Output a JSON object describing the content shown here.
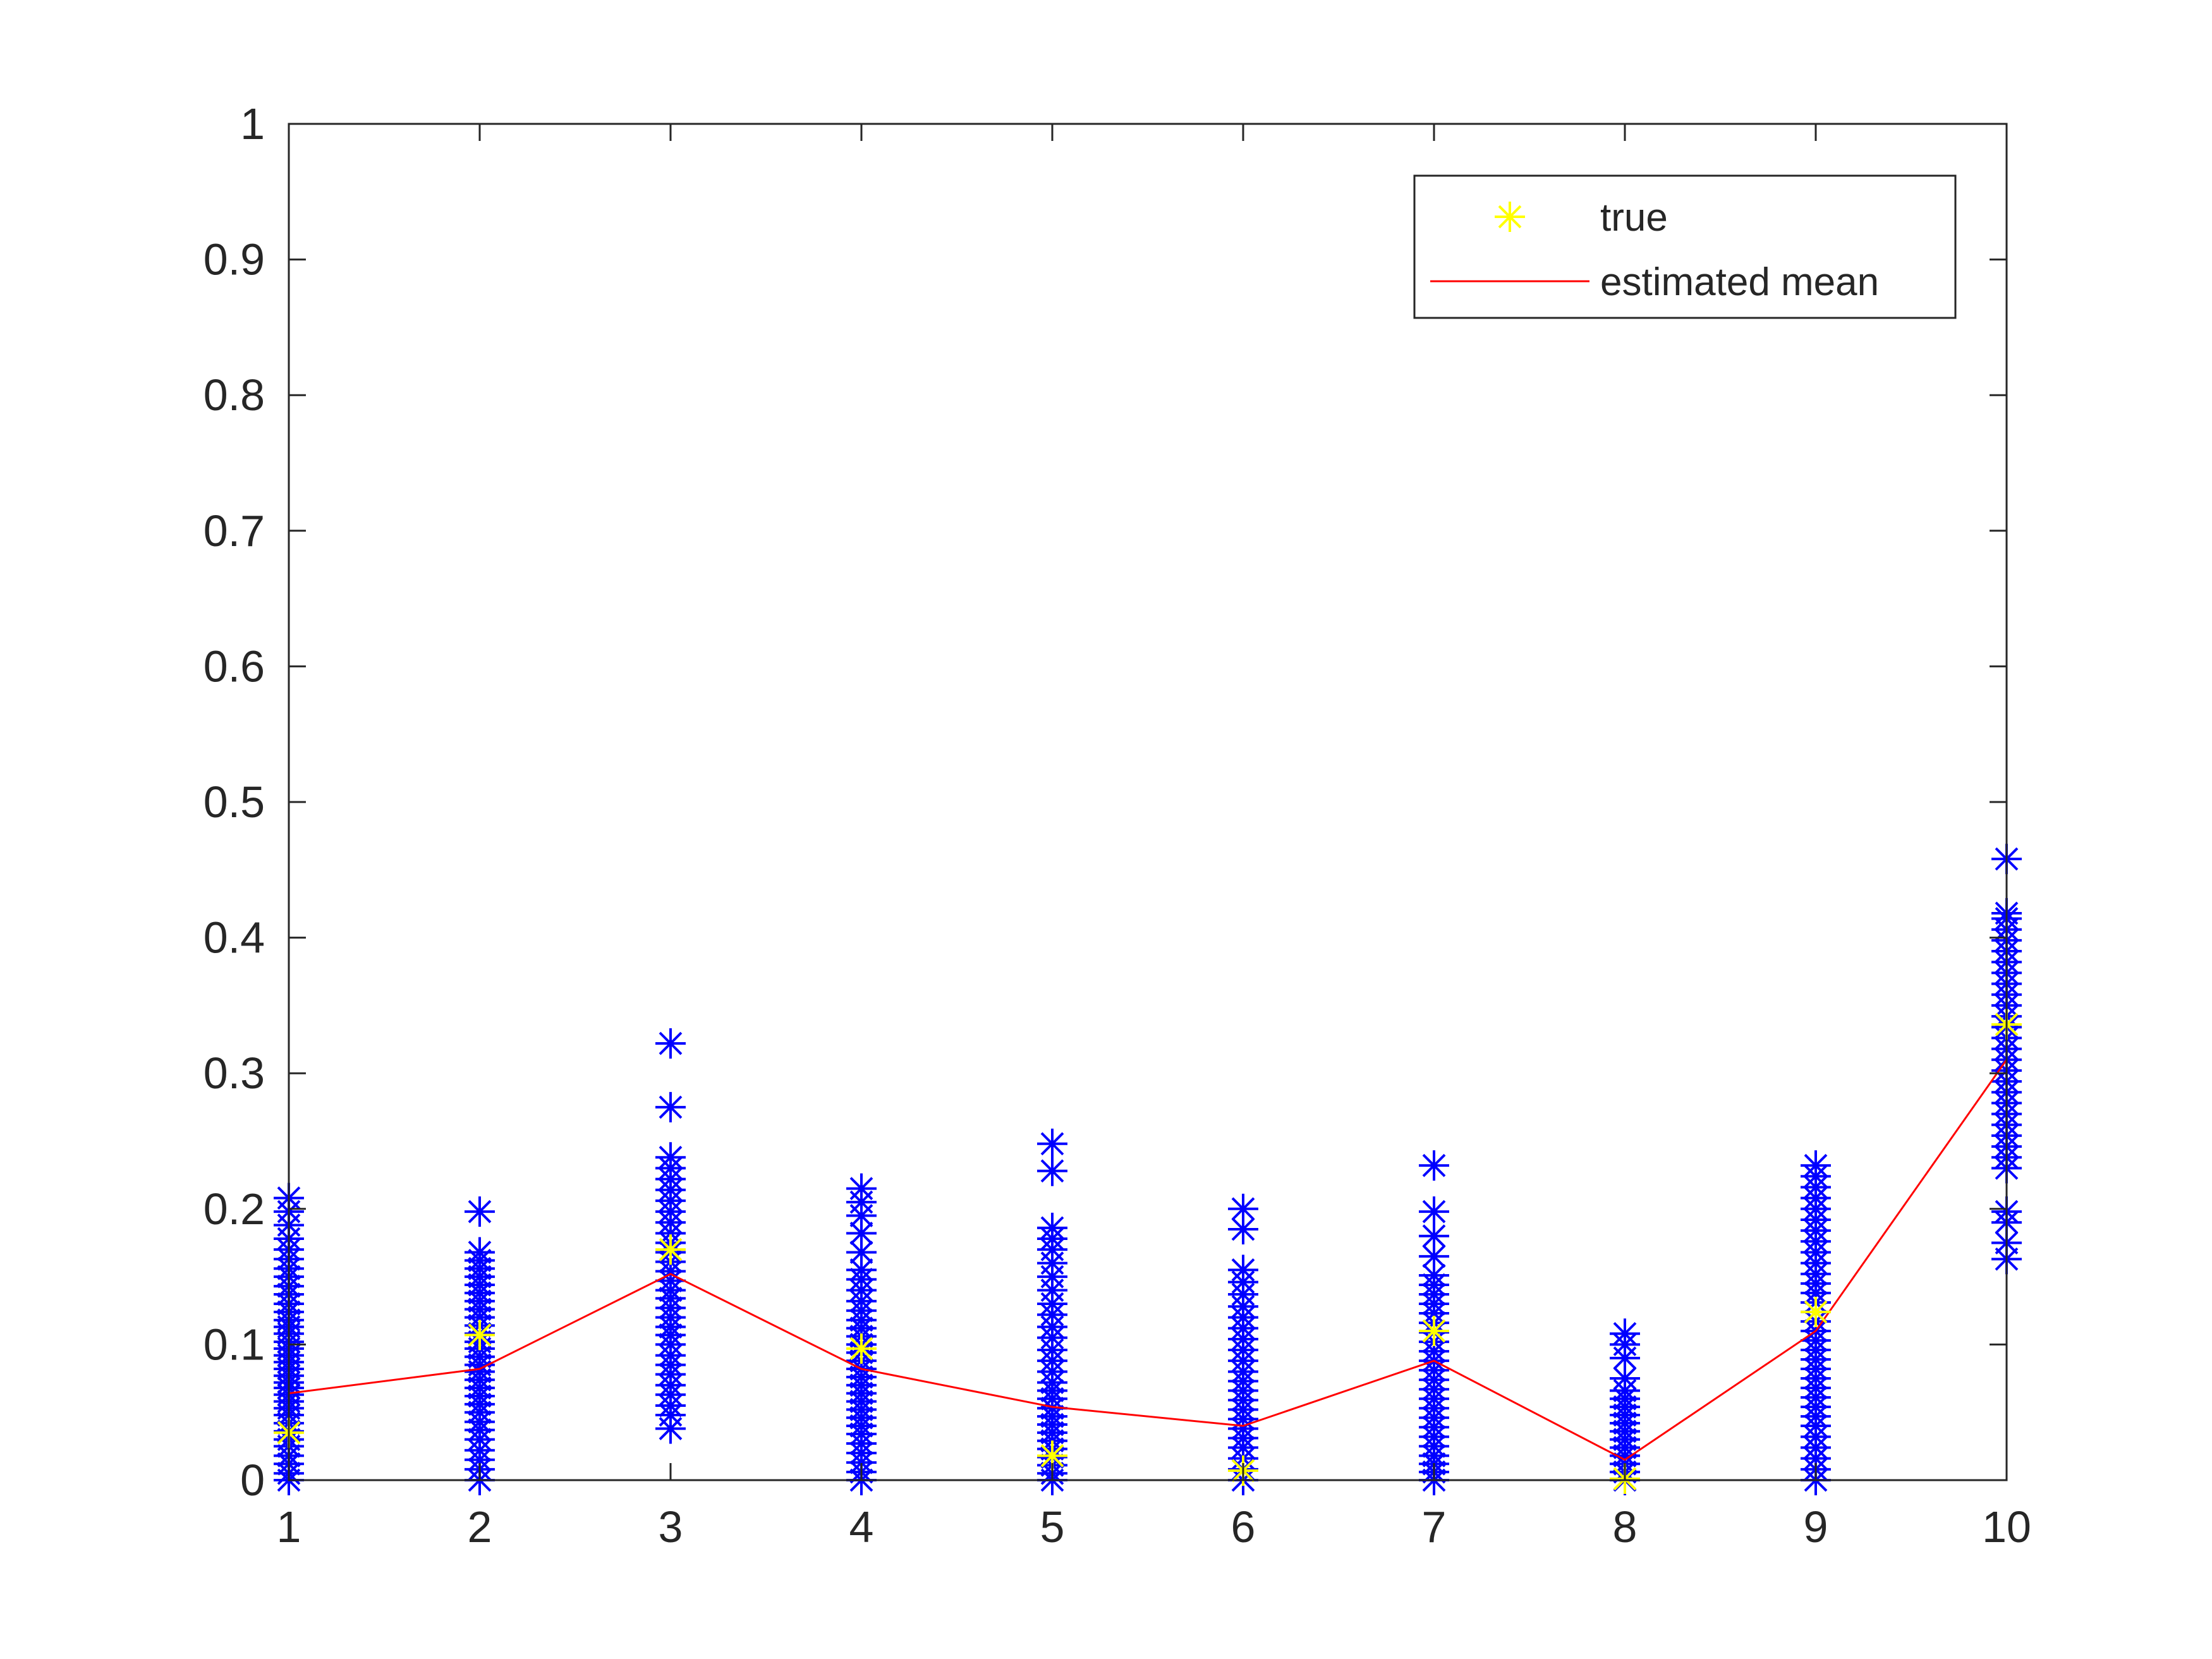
{
  "chart_data": {
    "type": "scatter",
    "title": "",
    "xlabel": "",
    "ylabel": "",
    "xlim": [
      1,
      10
    ],
    "ylim": [
      0,
      1
    ],
    "x_ticks": [
      1,
      2,
      3,
      4,
      5,
      6,
      7,
      8,
      9,
      10
    ],
    "y_ticks": [
      0,
      0.1,
      0.2,
      0.3,
      0.4,
      0.5,
      0.6,
      0.7,
      0.8,
      0.9,
      1
    ],
    "x_tick_labels": [
      "1",
      "2",
      "3",
      "4",
      "5",
      "6",
      "7",
      "8",
      "9",
      "10"
    ],
    "y_tick_labels": [
      "0",
      "0.1",
      "0.2",
      "0.3",
      "0.4",
      "0.5",
      "0.6",
      "0.7",
      "0.8",
      "0.9",
      "1"
    ],
    "grid": false,
    "legend_position": "top-right",
    "samples": [
      {
        "x": 1,
        "values": [
          0.0,
          0.005,
          0.012,
          0.018,
          0.025,
          0.03,
          0.036,
          0.042,
          0.048,
          0.053,
          0.058,
          0.063,
          0.068,
          0.072,
          0.077,
          0.082,
          0.087,
          0.092,
          0.097,
          0.102,
          0.108,
          0.113,
          0.118,
          0.124,
          0.13,
          0.137,
          0.143,
          0.15,
          0.156,
          0.163,
          0.17,
          0.178,
          0.188,
          0.198,
          0.208
        ]
      },
      {
        "x": 2,
        "values": [
          0.0,
          0.008,
          0.015,
          0.022,
          0.03,
          0.037,
          0.043,
          0.05,
          0.056,
          0.062,
          0.068,
          0.074,
          0.08,
          0.085,
          0.091,
          0.097,
          0.102,
          0.108,
          0.114,
          0.12,
          0.126,
          0.132,
          0.138,
          0.144,
          0.15,
          0.156,
          0.162,
          0.168,
          0.198
        ]
      },
      {
        "x": 3,
        "values": [
          0.038,
          0.048,
          0.055,
          0.063,
          0.07,
          0.078,
          0.085,
          0.092,
          0.1,
          0.107,
          0.113,
          0.12,
          0.127,
          0.134,
          0.14,
          0.147,
          0.154,
          0.161,
          0.168,
          0.175,
          0.182,
          0.19,
          0.198,
          0.206,
          0.214,
          0.222,
          0.23,
          0.238,
          0.275,
          0.322
        ]
      },
      {
        "x": 4,
        "values": [
          0.0,
          0.006,
          0.013,
          0.02,
          0.027,
          0.034,
          0.04,
          0.046,
          0.052,
          0.058,
          0.064,
          0.07,
          0.076,
          0.082,
          0.088,
          0.094,
          0.1,
          0.106,
          0.112,
          0.118,
          0.125,
          0.132,
          0.14,
          0.148,
          0.155,
          0.168,
          0.182,
          0.195,
          0.205,
          0.215
        ]
      },
      {
        "x": 5,
        "values": [
          0.0,
          0.005,
          0.011,
          0.017,
          0.023,
          0.029,
          0.035,
          0.041,
          0.047,
          0.053,
          0.06,
          0.066,
          0.072,
          0.08,
          0.088,
          0.096,
          0.105,
          0.113,
          0.122,
          0.13,
          0.14,
          0.15,
          0.16,
          0.17,
          0.178,
          0.186,
          0.228,
          0.248
        ]
      },
      {
        "x": 6,
        "values": [
          0.0,
          0.008,
          0.016,
          0.024,
          0.031,
          0.038,
          0.045,
          0.052,
          0.059,
          0.066,
          0.073,
          0.08,
          0.088,
          0.096,
          0.104,
          0.112,
          0.12,
          0.128,
          0.137,
          0.146,
          0.155,
          0.185,
          0.2
        ]
      },
      {
        "x": 7,
        "values": [
          0.0,
          0.006,
          0.012,
          0.018,
          0.025,
          0.032,
          0.039,
          0.046,
          0.053,
          0.06,
          0.067,
          0.074,
          0.081,
          0.088,
          0.095,
          0.102,
          0.109,
          0.116,
          0.123,
          0.13,
          0.137,
          0.144,
          0.151,
          0.165,
          0.18,
          0.198,
          0.232
        ]
      },
      {
        "x": 8,
        "values": [
          0.0,
          0.006,
          0.012,
          0.018,
          0.024,
          0.03,
          0.036,
          0.042,
          0.048,
          0.054,
          0.06,
          0.066,
          0.075,
          0.09,
          0.1,
          0.108
        ]
      },
      {
        "x": 9,
        "values": [
          0.0,
          0.008,
          0.016,
          0.024,
          0.032,
          0.04,
          0.047,
          0.054,
          0.061,
          0.068,
          0.075,
          0.082,
          0.089,
          0.096,
          0.103,
          0.11,
          0.117,
          0.124,
          0.131,
          0.138,
          0.145,
          0.152,
          0.16,
          0.168,
          0.176,
          0.184,
          0.192,
          0.2,
          0.208,
          0.216,
          0.224,
          0.232
        ]
      },
      {
        "x": 10,
        "values": [
          0.163,
          0.175,
          0.19,
          0.198,
          0.23,
          0.238,
          0.246,
          0.254,
          0.262,
          0.27,
          0.278,
          0.286,
          0.294,
          0.302,
          0.31,
          0.318,
          0.326,
          0.334,
          0.342,
          0.35,
          0.358,
          0.366,
          0.374,
          0.382,
          0.39,
          0.398,
          0.406,
          0.414,
          0.418,
          0.458
        ]
      }
    ],
    "series": [
      {
        "name": "true",
        "x": [
          1,
          2,
          3,
          4,
          5,
          6,
          7,
          8,
          9,
          10
        ],
        "values": [
          0.035,
          0.107,
          0.17,
          0.097,
          0.018,
          0.007,
          0.11,
          0.001,
          0.124,
          0.336
        ]
      },
      {
        "name": "estimated mean",
        "x": [
          1,
          2,
          3,
          4,
          5,
          6,
          7,
          8,
          9,
          10
        ],
        "values": [
          0.064,
          0.082,
          0.152,
          0.082,
          0.054,
          0.04,
          0.088,
          0.015,
          0.11,
          0.31
        ]
      }
    ],
    "colors": {
      "samples": "#0000ff",
      "true": "#ffff00",
      "estimated_mean": "#ff0000",
      "axes": "#262626"
    }
  }
}
